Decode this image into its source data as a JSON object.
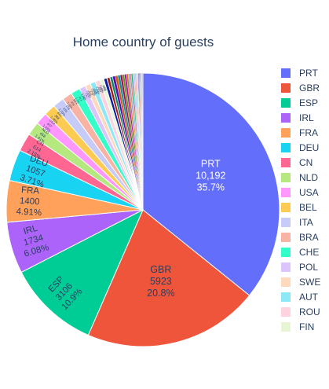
{
  "chart_data": {
    "type": "pie",
    "title": "Home country of guests",
    "slices": [
      {
        "label": "PRT",
        "value": 10192,
        "display_value": "10,192",
        "percent": "35.7%",
        "color": "#636efa"
      },
      {
        "label": "GBR",
        "value": 5923,
        "display_value": "5923",
        "percent": "20.8%",
        "color": "#EF553B"
      },
      {
        "label": "ESP",
        "value": 3106,
        "display_value": "3106",
        "percent": "10.9%",
        "color": "#00cc96"
      },
      {
        "label": "IRL",
        "value": 1734,
        "display_value": "1734",
        "percent": "6.08%",
        "color": "#ab63fa"
      },
      {
        "label": "FRA",
        "value": 1400,
        "display_value": "1400",
        "percent": "4.91%",
        "color": "#FFA15A"
      },
      {
        "label": "DEU",
        "value": 1057,
        "display_value": "1057",
        "percent": "3.71%",
        "color": "#19d3f3"
      },
      {
        "label": "CN",
        "value": 614,
        "display_value": "614",
        "percent": "2.15%",
        "color": "#FF6692"
      },
      {
        "label": "NLD",
        "value": 458,
        "display_value": "458",
        "percent": "1.61%",
        "color": "#B6E880"
      },
      {
        "label": "USA",
        "value": 407,
        "display_value": "407",
        "percent": "1.43%",
        "color": "#FF97FF"
      },
      {
        "label": "BEL",
        "value": 388,
        "display_value": "388",
        "percent": "1.36%",
        "color": "#FECB52"
      },
      {
        "label": "ITA",
        "value": 379,
        "display_value": "379",
        "percent": "1.33%",
        "color": "#c6cbf7"
      },
      {
        "label": "BRA",
        "value": 336,
        "display_value": "336",
        "percent": "1.18%",
        "color": "#f9b3a4"
      },
      {
        "label": "CHE",
        "value": 313,
        "display_value": "313",
        "percent": "1.1%",
        "color": "#33ffc8"
      },
      {
        "label": "POL",
        "value": 212,
        "display_value": "212",
        "percent": "0.74%",
        "color": "#dcc5fd"
      },
      {
        "label": "SWE",
        "value": 179,
        "display_value": "179",
        "percent": "0.63%",
        "color": "#ffd9bd"
      },
      {
        "label": "AUT",
        "value": 178,
        "display_value": "178",
        "percent": "0.62%",
        "color": "#8ce7f7"
      },
      {
        "label": "ROU",
        "value": 167,
        "display_value": "167",
        "percent": "0.59%",
        "color": "#ffd2e0"
      },
      {
        "label": "FIN",
        "value": 128,
        "display_value": "128",
        "percent": "0.45%",
        "color": "#e6f6d4"
      },
      {
        "label": "",
        "value": 110,
        "display_value": "",
        "percent": "",
        "color": "#0c1aa8"
      },
      {
        "label": "",
        "value": 100,
        "display_value": "",
        "percent": "",
        "color": "#a8170b"
      },
      {
        "label": "",
        "value": 95,
        "display_value": "",
        "percent": "",
        "color": "#008a66"
      },
      {
        "label": "",
        "value": 90,
        "display_value": "",
        "percent": "",
        "color": "#5e0bb3"
      },
      {
        "label": "",
        "value": 85,
        "display_value": "",
        "percent": "",
        "color": "#cf5e0a"
      },
      {
        "label": "",
        "value": 80,
        "display_value": "",
        "percent": "",
        "color": "#0a8fa8"
      },
      {
        "label": "",
        "value": 75,
        "display_value": "",
        "percent": "",
        "color": "#ab0a3f"
      },
      {
        "label": "",
        "value": 70,
        "display_value": "",
        "percent": "",
        "color": "#5c9c1c"
      },
      {
        "label": "",
        "value": 65,
        "display_value": "",
        "percent": "",
        "color": "#b800b8"
      },
      {
        "label": "",
        "value": 60,
        "display_value": "",
        "percent": "",
        "color": "#b58600"
      },
      {
        "label": "",
        "value": 55,
        "display_value": "",
        "percent": "",
        "color": "#8f97e8"
      },
      {
        "label": "",
        "value": 50,
        "display_value": "",
        "percent": "",
        "color": "#e8836e"
      },
      {
        "label": "",
        "value": 46,
        "display_value": "",
        "percent": "",
        "color": "#00b386"
      },
      {
        "label": "",
        "value": 42,
        "display_value": "",
        "percent": "",
        "color": "#c49cf7"
      },
      {
        "label": "",
        "value": 38,
        "display_value": "",
        "percent": "",
        "color": "#f7b27a"
      },
      {
        "label": "",
        "value": 35,
        "display_value": "",
        "percent": "",
        "color": "#5fd6ee"
      },
      {
        "label": "",
        "value": 32,
        "display_value": "",
        "percent": "",
        "color": "#f29bb6"
      },
      {
        "label": "",
        "value": 30,
        "display_value": "",
        "percent": "",
        "color": "#c7e8a6"
      },
      {
        "label": "",
        "value": 28,
        "display_value": "",
        "percent": "",
        "color": "#4650c8"
      },
      {
        "label": "",
        "value": 26,
        "display_value": "",
        "percent": "",
        "color": "#c73a22"
      },
      {
        "label": "",
        "value": 24,
        "display_value": "",
        "percent": "",
        "color": "#7d8bc0"
      },
      {
        "label": "",
        "value": 22,
        "display_value": "",
        "percent": "",
        "color": "#999999"
      },
      {
        "label": "",
        "value": 20,
        "display_value": "",
        "percent": "",
        "color": "#666666"
      },
      {
        "label": "",
        "value": 18,
        "display_value": "",
        "percent": "",
        "color": "#b0b0b0"
      },
      {
        "label": "",
        "value": 15,
        "display_value": "",
        "percent": "",
        "color": "#444444"
      },
      {
        "label": "",
        "value": 12,
        "display_value": "",
        "percent": "",
        "color": "#8a8a8a"
      }
    ],
    "legend_position": "right",
    "slice_order": "clockwise from 12 o'clock, descending"
  }
}
